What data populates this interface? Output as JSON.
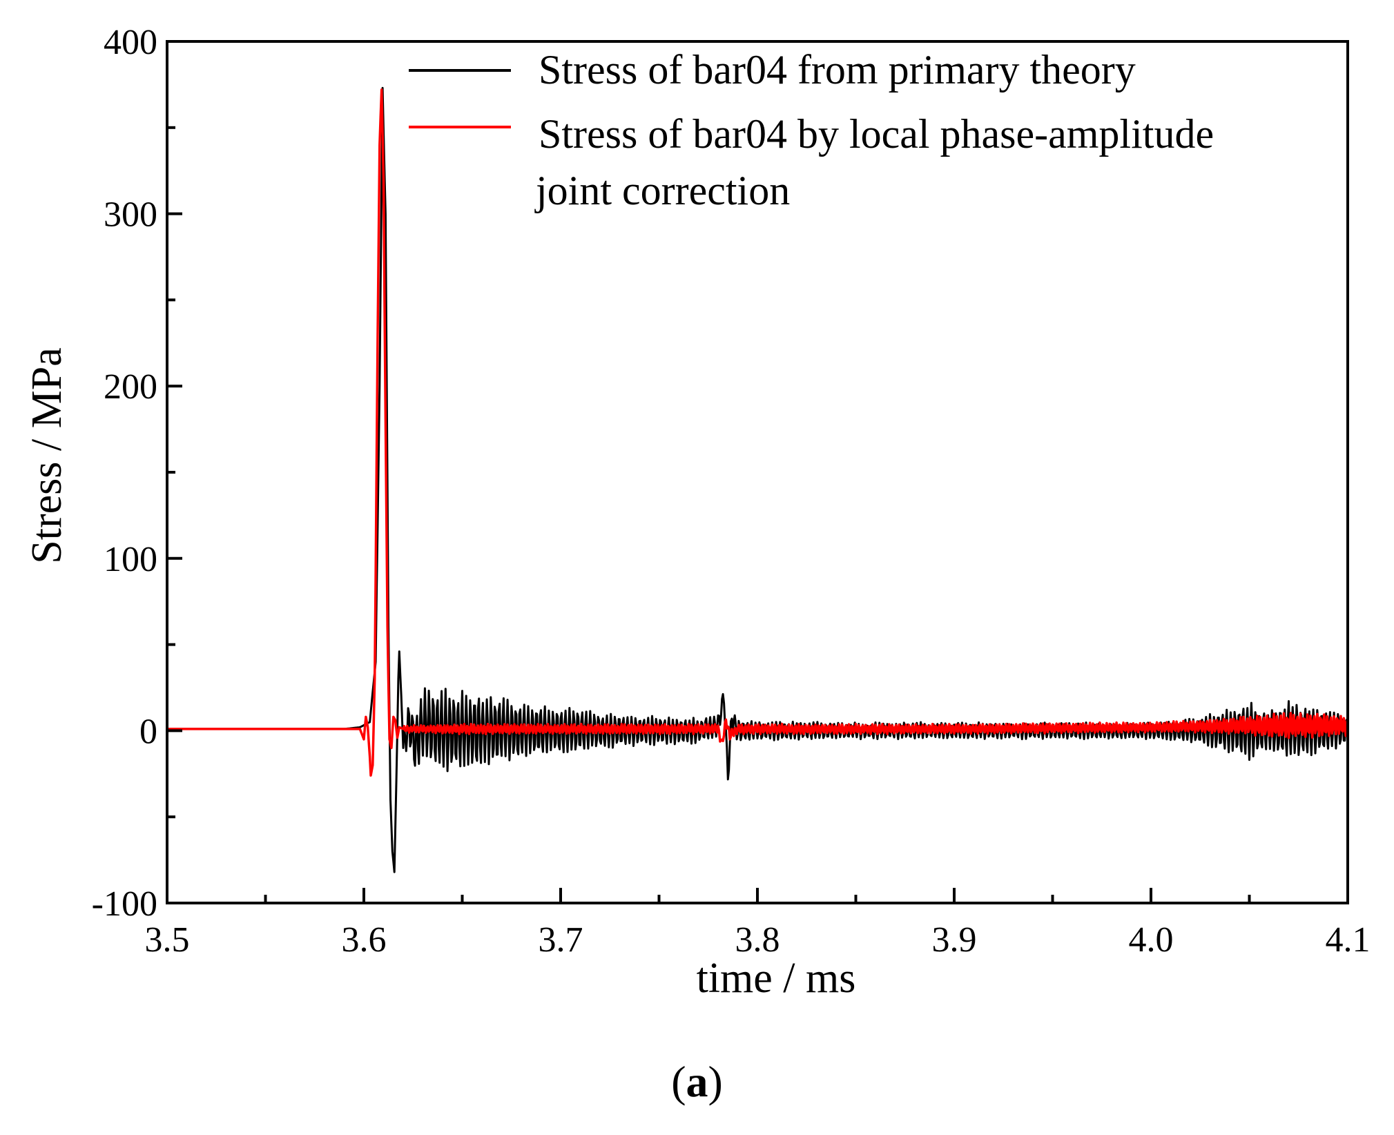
{
  "chart_data": {
    "type": "line",
    "title": "",
    "xlabel": "time / ms",
    "ylabel": "Stress / MPa",
    "xlim": [
      3.5,
      4.1
    ],
    "ylim": [
      -100,
      400
    ],
    "x_ticks": [
      "3.5",
      "3.6",
      "3.7",
      "3.8",
      "3.9",
      "4.0",
      "4.1"
    ],
    "y_ticks": [
      "-100",
      "0",
      "100",
      "200",
      "300",
      "400"
    ],
    "grid": false,
    "legend_position": "top-right",
    "series": [
      {
        "name": "Stress of bar04 from primary theory",
        "color": "#000000",
        "x": [
          3.5,
          3.55,
          3.59,
          3.598,
          3.603,
          3.606,
          3.608,
          3.6095,
          3.611,
          3.6125,
          3.6135,
          3.6145,
          3.6155,
          3.6165,
          3.6175,
          3.618,
          3.619,
          3.62,
          3.623,
          3.626,
          3.63,
          3.64,
          3.65,
          3.66,
          3.67,
          3.68,
          3.7,
          3.72,
          3.74,
          3.76,
          3.77,
          3.78,
          3.783,
          3.785,
          3.787,
          3.79,
          3.8,
          3.82,
          3.85,
          3.9,
          3.95,
          3.98,
          4.0,
          4.02,
          4.04,
          4.05,
          4.06,
          4.07,
          4.08,
          4.1
        ],
        "y": [
          1,
          1,
          1,
          2,
          5,
          40,
          200,
          373,
          300,
          60,
          -40,
          -70,
          -82,
          -30,
          30,
          46,
          20,
          -10,
          5,
          -8,
          3,
          0,
          0,
          0,
          0,
          0,
          0,
          0,
          0,
          0,
          0,
          3,
          20,
          -26,
          8,
          0,
          0,
          0,
          0,
          0,
          0,
          0,
          0,
          0,
          0,
          0,
          0,
          0,
          0,
          0
        ],
        "oscillation_envelope": {
          "x": [
            3.62,
            3.63,
            3.64,
            3.65,
            3.66,
            3.68,
            3.7,
            3.72,
            3.74,
            3.76,
            3.78,
            3.8,
            3.85,
            3.9,
            3.95,
            4.0,
            4.02,
            4.04,
            4.05,
            4.06,
            4.07,
            4.08,
            4.1
          ],
          "amplitude": [
            10,
            22,
            25,
            24,
            22,
            18,
            14,
            11,
            9,
            8,
            7,
            6,
            5,
            5,
            5,
            5,
            7,
            13,
            17,
            11,
            18,
            15,
            9
          ]
        }
      },
      {
        "name": "Stress of bar04 by local phase-amplitude joint correction",
        "color": "#ff0000",
        "x": [
          3.5,
          3.55,
          3.59,
          3.598,
          3.6,
          3.601,
          3.602,
          3.603,
          3.6035,
          3.6045,
          3.605,
          3.6055,
          3.606,
          3.607,
          3.608,
          3.609,
          3.61,
          3.611,
          3.612,
          3.613,
          3.614,
          3.615,
          3.616,
          3.617,
          3.618,
          3.62,
          3.63,
          3.7,
          3.78,
          3.782,
          3.784,
          3.786,
          3.79,
          3.9,
          4.0,
          4.05,
          4.1
        ],
        "y": [
          1,
          1,
          1,
          1,
          -5,
          8,
          2,
          -15,
          -26,
          -20,
          5,
          30,
          90,
          230,
          340,
          372,
          320,
          180,
          60,
          -5,
          -10,
          8,
          6,
          -4,
          2,
          1,
          1,
          1,
          1,
          -8,
          6,
          -3,
          1,
          1,
          2,
          3,
          3
        ],
        "oscillation_envelope": {
          "x": [
            3.62,
            3.65,
            3.7,
            3.75,
            3.8,
            3.85,
            3.9,
            3.95,
            4.0,
            4.03,
            4.05,
            4.07,
            4.1
          ],
          "amplitude": [
            2,
            3,
            3,
            3,
            3,
            3,
            3,
            3,
            3,
            4,
            6,
            8,
            6
          ]
        }
      }
    ]
  },
  "caption": {
    "open": "(",
    "label": "a",
    "close": ")"
  }
}
